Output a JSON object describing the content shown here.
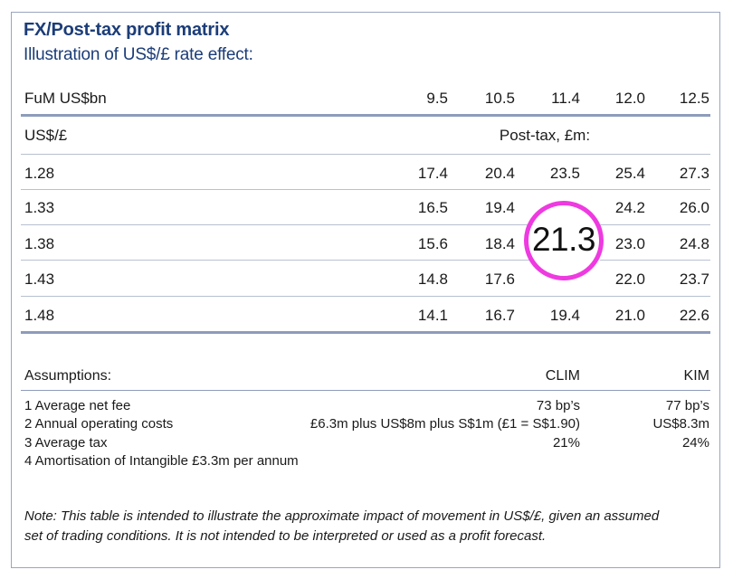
{
  "title": "FX/Post-tax profit matrix",
  "subtitle": "Illustration of US$/£ rate effect:",
  "matrix": {
    "fum_label": "FuM US$bn",
    "fum_values": [
      "9.5",
      "10.5",
      "11.4",
      "12.0",
      "12.5"
    ],
    "rate_label": "US$/£",
    "posttax_label": "Post-tax, £m:",
    "rows": [
      {
        "rate": "1.28",
        "values": [
          "17.4",
          "20.4",
          "23.5",
          "25.4",
          "27.3"
        ]
      },
      {
        "rate": "1.33",
        "values": [
          "16.5",
          "19.4",
          "",
          "24.2",
          "26.0"
        ]
      },
      {
        "rate": "1.38",
        "values": [
          "15.6",
          "18.4",
          "21.3",
          "23.0",
          "24.8"
        ]
      },
      {
        "rate": "1.43",
        "values": [
          "14.8",
          "17.6",
          "",
          "22.0",
          "23.7"
        ]
      },
      {
        "rate": "1.48",
        "values": [
          "14.1",
          "16.7",
          "19.4",
          "21.0",
          "22.6"
        ]
      }
    ],
    "highlight": {
      "value": "21.3",
      "color": "#ee3ae0"
    }
  },
  "assumptions": {
    "heading": "Assumptions:",
    "col1": "CLIM",
    "col2": "KIM",
    "items": [
      {
        "label": "1 Average net fee",
        "clim": "73 bp’s",
        "kim": "77 bp’s"
      },
      {
        "label": "2 Annual operating costs",
        "clim": "£6.3m plus US$8m plus S$1m (£1 = S$1.90)",
        "kim": "US$8.3m"
      },
      {
        "label": "3 Average tax",
        "clim": "21%",
        "kim": "24%"
      },
      {
        "label": "4 Amortisation of Intangible £3.3m per annum",
        "clim": "",
        "kim": ""
      }
    ]
  },
  "note": {
    "line1": "Note: This table is intended to illustrate the approximate impact of movement in US$/£, given an assumed",
    "line2": "set of trading conditions. It is not intended to be interpreted or used as a profit forecast."
  },
  "colors": {
    "title": "#1c3d78",
    "rule": "#8e9cbb",
    "highlight": "#ee3ae0"
  }
}
